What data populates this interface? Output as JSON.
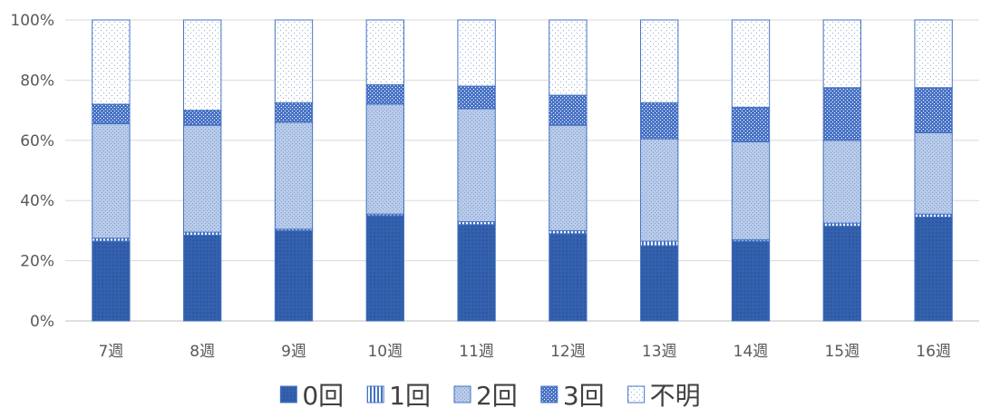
{
  "chart_data": {
    "type": "bar",
    "stacked": true,
    "percent": true,
    "categories": [
      "7週",
      "8週",
      "9週",
      "10週",
      "11週",
      "12週",
      "13週",
      "14週",
      "15週",
      "16週"
    ],
    "series": [
      {
        "name": "0回",
        "values": [
          26.5,
          28.5,
          30.0,
          35.0,
          32.0,
          29.0,
          25.0,
          26.5,
          31.5,
          34.5
        ]
      },
      {
        "name": "1回",
        "values": [
          1.0,
          1.0,
          0.5,
          0.5,
          1.0,
          1.0,
          1.5,
          0.5,
          1.0,
          1.0
        ]
      },
      {
        "name": "2回",
        "values": [
          38.0,
          35.5,
          35.5,
          36.5,
          37.5,
          35.0,
          34.0,
          32.5,
          27.5,
          27.0
        ]
      },
      {
        "name": "3回",
        "values": [
          6.5,
          5.0,
          6.5,
          6.5,
          7.5,
          10.0,
          12.0,
          11.5,
          17.5,
          15.0
        ]
      },
      {
        "name": "不明",
        "values": [
          28.0,
          30.0,
          27.5,
          21.5,
          22.0,
          25.0,
          27.5,
          29.0,
          22.5,
          22.5
        ]
      }
    ],
    "ylim": [
      0,
      100
    ],
    "yticks": [
      "0%",
      "20%",
      "40%",
      "60%",
      "80%",
      "100%"
    ],
    "grid": true,
    "legend": "bottom",
    "title": "",
    "xlabel": "",
    "ylabel": ""
  }
}
